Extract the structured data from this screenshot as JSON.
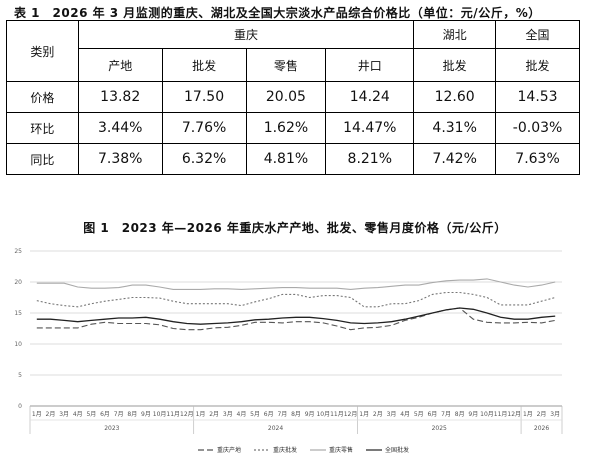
{
  "table": {
    "caption": "表 1　2026 年 3 月监测的重庆、湖北及全国大宗淡水产品综合价格比（单位：元/公斤，%）",
    "header_category": "类别",
    "groups": [
      "重庆",
      "湖北",
      "全国"
    ],
    "subheaders": [
      "产地",
      "批发",
      "零售",
      "井口",
      "批发",
      "批发"
    ],
    "rows": [
      {
        "label": "价格",
        "values": [
          "13.82",
          "17.50",
          "20.05",
          "14.24",
          "12.60",
          "14.53"
        ]
      },
      {
        "label": "环比",
        "values": [
          "3.44%",
          "7.76%",
          "1.62%",
          "14.47%",
          "4.31%",
          "-0.03%"
        ]
      },
      {
        "label": "同比",
        "values": [
          "7.38%",
          "6.32%",
          "4.81%",
          "8.21%",
          "7.42%",
          "7.63%"
        ]
      }
    ]
  },
  "chart_data": {
    "type": "line",
    "title": "图 1　2023 年—2026 年重庆水产产地、批发、零售月度价格（元/公斤）",
    "ylim": [
      0,
      25
    ],
    "yticks": [
      "0",
      "5",
      "10",
      "15",
      "20",
      "25"
    ],
    "grid": true,
    "legend_position": "bottom",
    "x": [
      "1月",
      "2月",
      "3月",
      "4月",
      "5月",
      "6月",
      "7月",
      "8月",
      "9月",
      "10月",
      "11月",
      "12月",
      "1月",
      "2月",
      "3月",
      "4月",
      "5月",
      "6月",
      "7月",
      "8月",
      "9月",
      "10月",
      "11月",
      "12月",
      "1月",
      "2月",
      "3月",
      "4月",
      "5月",
      "6月",
      "7月",
      "8月",
      "9月",
      "10月",
      "11月",
      "12月",
      "1月",
      "2月",
      "3月"
    ],
    "years": [
      {
        "label": "2023",
        "start": 0,
        "end": 11
      },
      {
        "label": "2024",
        "start": 12,
        "end": 23
      },
      {
        "label": "2025",
        "start": 24,
        "end": 35
      },
      {
        "label": "2026",
        "start": 36,
        "end": 38
      }
    ],
    "series": [
      {
        "name": "重庆产地",
        "color": "#555555",
        "dash": "6,3",
        "values": [
          12.6,
          12.6,
          12.6,
          12.6,
          13.2,
          13.5,
          13.3,
          13.3,
          13.3,
          13.1,
          12.5,
          12.3,
          12.3,
          12.6,
          12.7,
          13.0,
          13.5,
          13.5,
          13.4,
          13.6,
          13.6,
          13.4,
          12.9,
          12.3,
          12.6,
          12.7,
          13.0,
          13.8,
          14.3,
          15.0,
          15.5,
          15.8,
          14.0,
          13.5,
          13.4,
          13.4,
          13.5,
          13.4,
          13.8
        ]
      },
      {
        "name": "重庆批发",
        "color": "#777777",
        "dash": "2,2",
        "values": [
          17.0,
          16.5,
          16.2,
          16.0,
          16.5,
          16.9,
          17.2,
          17.5,
          17.5,
          17.4,
          16.9,
          16.5,
          16.5,
          16.5,
          16.5,
          16.2,
          16.8,
          17.3,
          18.0,
          18.0,
          17.5,
          17.8,
          17.8,
          17.5,
          16.0,
          16.0,
          16.5,
          16.5,
          17.0,
          18.0,
          18.3,
          18.3,
          18.0,
          17.5,
          16.3,
          16.3,
          16.3,
          16.9,
          17.5
        ]
      },
      {
        "name": "重庆零售",
        "color": "#aaaaaa",
        "dash": "",
        "values": [
          19.8,
          19.8,
          19.8,
          19.2,
          19.0,
          19.0,
          19.1,
          19.5,
          19.5,
          19.2,
          18.8,
          18.8,
          18.8,
          18.9,
          18.9,
          18.8,
          18.9,
          19.0,
          19.1,
          19.1,
          19.0,
          19.0,
          19.0,
          18.8,
          19.0,
          19.1,
          19.3,
          19.5,
          19.5,
          19.9,
          20.2,
          20.3,
          20.3,
          20.5,
          20.0,
          19.5,
          19.2,
          19.5,
          20.0
        ]
      },
      {
        "name": "全国批发",
        "color": "#222222",
        "dash": "",
        "values": [
          14.0,
          14.0,
          13.8,
          13.6,
          13.8,
          14.0,
          14.2,
          14.2,
          14.3,
          14.0,
          13.6,
          13.3,
          13.2,
          13.3,
          13.4,
          13.6,
          13.9,
          14.0,
          14.2,
          14.3,
          14.3,
          14.1,
          13.8,
          13.4,
          13.3,
          13.4,
          13.6,
          14.0,
          14.5,
          15.0,
          15.5,
          15.8,
          15.6,
          15.0,
          14.3,
          14.0,
          14.0,
          14.3,
          14.5
        ]
      }
    ]
  }
}
